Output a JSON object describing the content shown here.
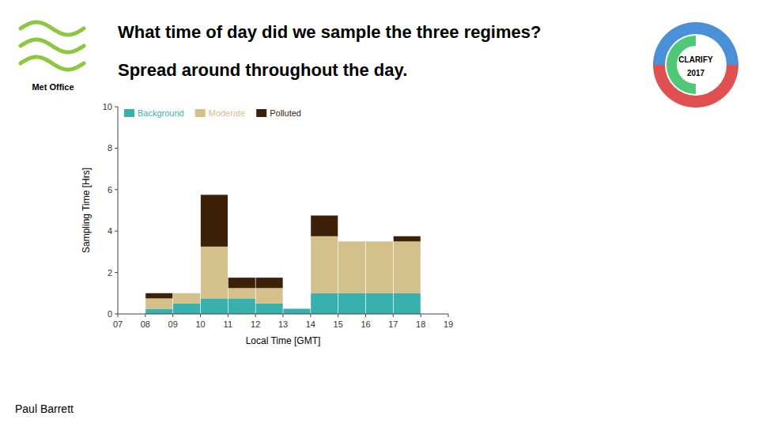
{
  "chart_data": {
    "type": "bar",
    "stacked": true,
    "title": "What time of day did we sample the three regimes?",
    "subtitle": "Spread around throughout the day.",
    "xlabel": "Local Time [GMT]",
    "ylabel": "Sampling Time [Hrs]",
    "x": [
      8,
      9,
      10,
      11,
      12,
      13,
      14,
      15,
      16,
      17,
      18
    ],
    "xlim": [
      7,
      19
    ],
    "xticks": [
      {
        "value": 7,
        "label": "07"
      },
      {
        "value": 8,
        "label": "08"
      },
      {
        "value": 9,
        "label": "09"
      },
      {
        "value": 10,
        "label": "10"
      },
      {
        "value": 11,
        "label": "11"
      },
      {
        "value": 12,
        "label": "12"
      },
      {
        "value": 13,
        "label": "13"
      },
      {
        "value": 14,
        "label": "14"
      },
      {
        "value": 15,
        "label": "15"
      },
      {
        "value": 16,
        "label": "16"
      },
      {
        "value": 17,
        "label": "17"
      },
      {
        "value": 18,
        "label": "18"
      },
      {
        "value": 19,
        "label": "19"
      }
    ],
    "ylim": [
      0,
      10
    ],
    "yticks": [
      0,
      2,
      4,
      6,
      8,
      10
    ],
    "series": [
      {
        "name": "Background",
        "color": "#38b0ae",
        "values": [
          0.25,
          0.5,
          0.75,
          0.75,
          0.5,
          0.25,
          1.0,
          1.0,
          1.0,
          1.0,
          0.0
        ]
      },
      {
        "name": "Moderate",
        "color": "#d4c08a",
        "values": [
          0.5,
          0.5,
          2.5,
          0.5,
          0.75,
          0.0,
          2.75,
          2.5,
          2.5,
          2.5,
          0.0
        ]
      },
      {
        "name": "Polluted",
        "color": "#3d2008",
        "values": [
          0.25,
          0.0,
          2.5,
          0.5,
          0.5,
          0.0,
          1.0,
          0.0,
          0.0,
          0.25,
          0.0
        ]
      }
    ],
    "legend": "upper left",
    "grid": false,
    "annotations": [
      "Paul Barrett",
      "Met Office",
      "CLARIFY",
      "2017"
    ]
  }
}
